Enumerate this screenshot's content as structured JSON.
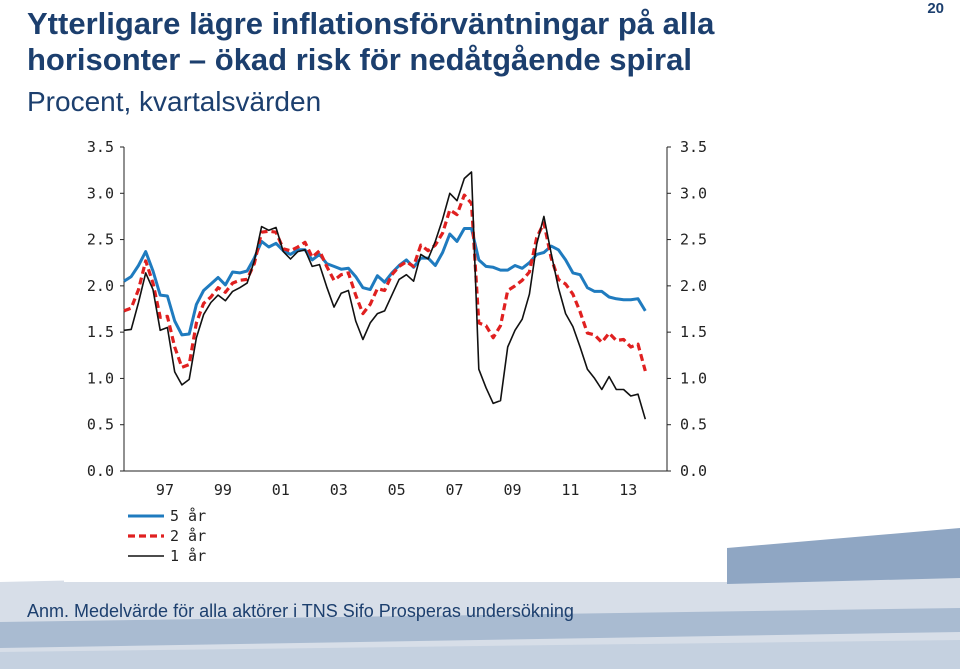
{
  "slide": {
    "title": "Ytterligare lägre inflationsförväntningar på alla horisonter – ökad risk för nedåtgående spiral",
    "subtitle": "Procent, kvartalsvärden",
    "page_number": "20",
    "note": "Anm. Medelvärde för alla aktörer i TNS Sifo Prosperas undersökning"
  },
  "chart_data": {
    "type": "line",
    "title": "",
    "xlabel": "",
    "ylabel": "",
    "ylim": [
      0,
      3.5
    ],
    "yticks": [
      "0.0",
      "0.5",
      "1.0",
      "1.5",
      "2.0",
      "2.5",
      "3.0",
      "3.5"
    ],
    "xlim": [
      1996.0,
      2014.75
    ],
    "xticks": [
      {
        "label": "97",
        "value": 1997
      },
      {
        "label": "99",
        "value": 1999
      },
      {
        "label": "01",
        "value": 2001
      },
      {
        "label": "03",
        "value": 2003
      },
      {
        "label": "05",
        "value": 2005
      },
      {
        "label": "07",
        "value": 2007
      },
      {
        "label": "09",
        "value": 2009
      },
      {
        "label": "11",
        "value": 2011
      },
      {
        "label": "13",
        "value": 2013
      }
    ],
    "x_start": 1996.0,
    "x_step": 0.25,
    "grid": false,
    "legend_position": "bottom-left",
    "series": [
      {
        "name": "5 år",
        "color": "#1f7bbf",
        "style": "solid-thick",
        "values": [
          2.05,
          2.1,
          2.22,
          2.37,
          2.16,
          1.9,
          1.89,
          1.62,
          1.47,
          1.48,
          1.8,
          1.95,
          2.02,
          2.09,
          2.01,
          2.15,
          2.14,
          2.16,
          2.3,
          2.48,
          2.42,
          2.46,
          2.38,
          2.34,
          2.39,
          2.39,
          2.28,
          2.34,
          2.24,
          2.21,
          2.18,
          2.19,
          2.1,
          1.98,
          1.96,
          2.11,
          2.04,
          2.14,
          2.22,
          2.28,
          2.2,
          2.3,
          2.3,
          2.22,
          2.36,
          2.56,
          2.48,
          2.62,
          2.62,
          2.28,
          2.21,
          2.2,
          2.17,
          2.17,
          2.22,
          2.19,
          2.25,
          2.34,
          2.36,
          2.43,
          2.39,
          2.28,
          2.14,
          2.12,
          1.98,
          1.94,
          1.94,
          1.88,
          1.86,
          1.85,
          1.85,
          1.86,
          1.73
        ]
      },
      {
        "name": "2 år",
        "color": "#e02020",
        "style": "dashed-thick",
        "values": [
          1.73,
          1.76,
          1.96,
          2.27,
          2.03,
          1.66,
          1.67,
          1.34,
          1.12,
          1.15,
          1.6,
          1.81,
          1.88,
          1.98,
          1.93,
          2.03,
          2.06,
          2.07,
          2.24,
          2.58,
          2.59,
          2.58,
          2.4,
          2.38,
          2.42,
          2.47,
          2.31,
          2.38,
          2.21,
          2.06,
          2.12,
          2.14,
          1.9,
          1.7,
          1.8,
          1.97,
          1.95,
          2.12,
          2.21,
          2.26,
          2.21,
          2.44,
          2.38,
          2.44,
          2.57,
          2.82,
          2.77,
          2.98,
          2.89,
          1.6,
          1.57,
          1.44,
          1.57,
          1.95,
          2.0,
          2.06,
          2.15,
          2.52,
          2.68,
          2.3,
          2.07,
          2.02,
          1.91,
          1.72,
          1.49,
          1.47,
          1.39,
          1.49,
          1.41,
          1.42,
          1.34,
          1.37,
          1.08
        ]
      },
      {
        "name": "1 år",
        "color": "#111111",
        "style": "solid-thin",
        "values": [
          1.52,
          1.53,
          1.82,
          2.14,
          1.96,
          1.52,
          1.55,
          1.07,
          0.93,
          0.99,
          1.44,
          1.69,
          1.82,
          1.9,
          1.84,
          1.94,
          1.98,
          2.03,
          2.27,
          2.64,
          2.6,
          2.63,
          2.37,
          2.29,
          2.37,
          2.39,
          2.21,
          2.23,
          1.99,
          1.77,
          1.92,
          1.95,
          1.62,
          1.42,
          1.6,
          1.7,
          1.73,
          1.9,
          2.07,
          2.12,
          2.05,
          2.34,
          2.29,
          2.48,
          2.72,
          3.0,
          2.92,
          3.16,
          3.23,
          1.1,
          0.9,
          0.73,
          0.76,
          1.34,
          1.52,
          1.64,
          1.91,
          2.45,
          2.75,
          2.35,
          1.98,
          1.7,
          1.56,
          1.34,
          1.1,
          1.0,
          0.88,
          1.02,
          0.88,
          0.88,
          0.81,
          0.83,
          0.56
        ]
      }
    ]
  }
}
